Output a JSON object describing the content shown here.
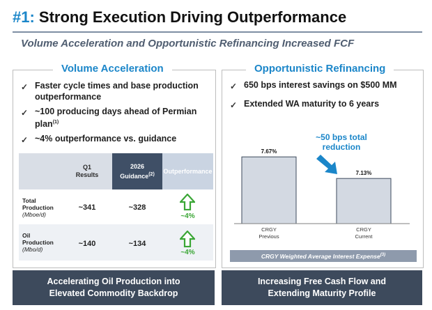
{
  "title": {
    "number": "#1:",
    "text": "Strong Execution Driving Outperformance"
  },
  "subtitle": "Volume Acceleration and Opportunistic Refinancing Increased FCF",
  "left_panel": {
    "title": "Volume Acceleration",
    "check_glyph": "✓",
    "bullets": [
      {
        "text": "Faster cycle times and base production outperformance"
      },
      {
        "text": "~100 producing days ahead of Permian plan",
        "sup": "(1)"
      },
      {
        "text": "~4% outperformance vs. guidance"
      }
    ],
    "table": {
      "headers": [
        {
          "line1": "Q1",
          "line2": "Results"
        },
        {
          "line1": "2026",
          "line2": "Guidance",
          "sup": "(2)"
        },
        {
          "line1": "Outperformance"
        }
      ],
      "rows": [
        {
          "label1": "Total",
          "label2": "Production",
          "unit": "(Mboe/d)",
          "q1": "~341",
          "guidance": "~328",
          "outperformance": "~4%"
        },
        {
          "label1": "Oil",
          "label2": "Production",
          "unit": "(Mbo/d)",
          "q1": "~140",
          "guidance": "~134",
          "outperformance": "~4%"
        }
      ]
    }
  },
  "right_panel": {
    "title": "Opportunistic Refinancing",
    "check_glyph": "✓",
    "bullets": [
      {
        "text": "650 bps interest savings on $500 MM"
      },
      {
        "text": "Extended WA maturity to 6 years"
      }
    ],
    "annotation": "~50 bps total reduction",
    "caption": "CRGY Weighted Average Interest Expense",
    "caption_sup": "(3)"
  },
  "chart_data": {
    "type": "bar",
    "categories": [
      "CRGY Previous",
      "CRGY Current"
    ],
    "category_lines": [
      [
        "CRGY",
        "Previous"
      ],
      [
        "CRGY",
        "Current"
      ]
    ],
    "values": [
      7.67,
      7.13
    ],
    "data_labels": [
      "7.67%",
      "7.13%"
    ],
    "title": "CRGY Weighted Average Interest Expense",
    "xlabel": "",
    "ylabel": "",
    "ylim": [
      6.0,
      7.9
    ],
    "annotation": "~50 bps total reduction",
    "colors": {
      "bar": "#d3d9e2",
      "bar_border": "#3d4a5c",
      "arrow": "#1b86c9"
    }
  },
  "banners": {
    "left": [
      "Accelerating Oil Production into",
      "Elevated Commodity Backdrop"
    ],
    "right": [
      "Increasing Free Cash Flow and",
      "Extending Maturity Profile"
    ]
  },
  "colors": {
    "accent_blue": "#1b86c9",
    "navy": "#3d4a5c",
    "green_up": "#3aa635"
  },
  "icons": {
    "outperformance": "up-arrow-outline-icon",
    "reduction": "down-right-arrow-icon"
  }
}
